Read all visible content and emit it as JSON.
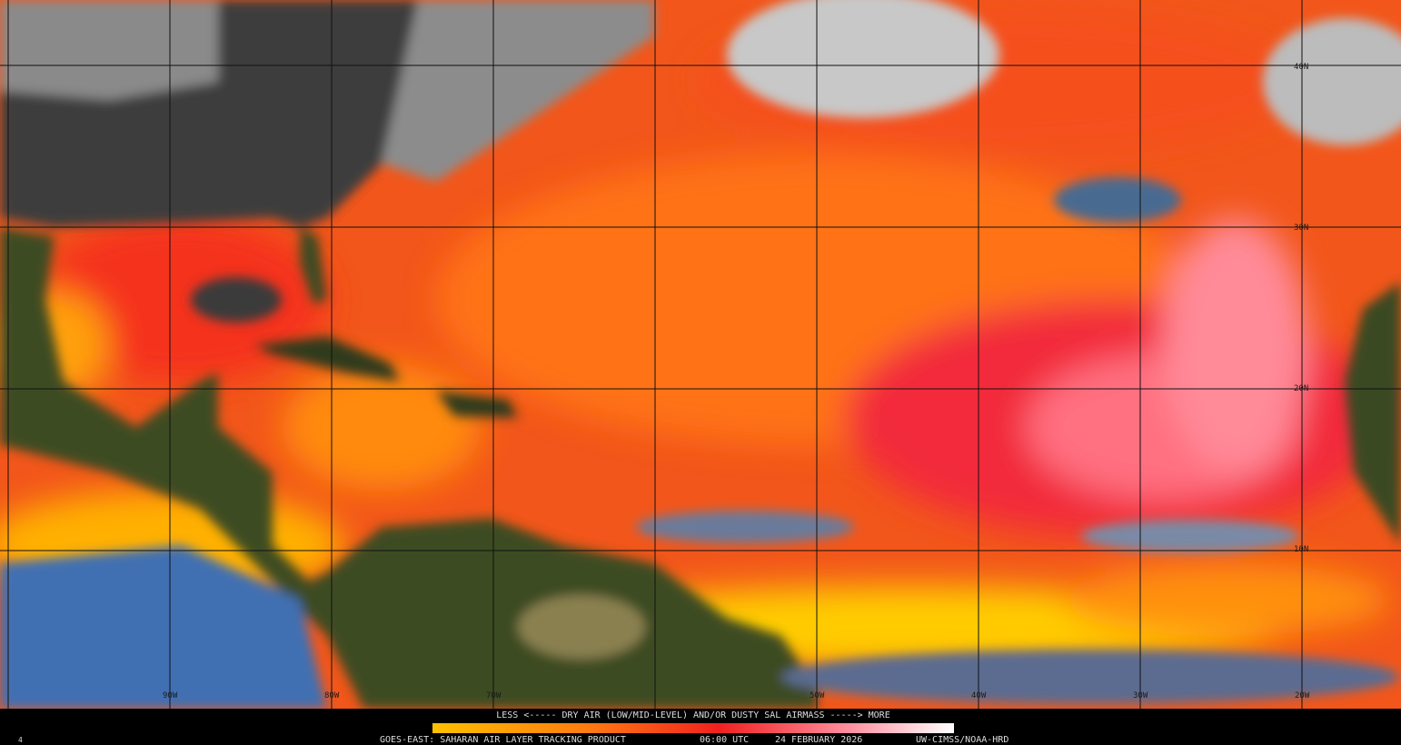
{
  "map": {
    "lon_labels": [
      "90W",
      "80W",
      "70W",
      "50W",
      "40W",
      "30W",
      "20W"
    ],
    "lat_labels": [
      "40N",
      "30N",
      "20N",
      "10N"
    ]
  },
  "legend": {
    "caption": "LESS <----- DRY AIR (LOW/MID-LEVEL) AND/OR DUSTY SAL AIRMASS -----> MORE"
  },
  "footer": {
    "corner": "4",
    "product": "GOES-EAST: SAHARAN AIR LAYER TRACKING PRODUCT",
    "time": "06:00 UTC",
    "date": "24 FEBRUARY 2026",
    "credit": "UW-CIMSS/NOAA-HRD"
  }
}
